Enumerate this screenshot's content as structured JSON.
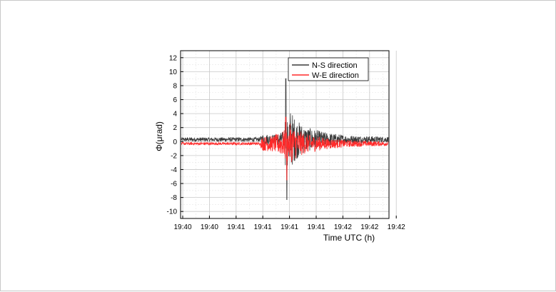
{
  "chart_data": {
    "type": "line",
    "xlabel": "Time UTC (h)",
    "ylabel": "Φ(μrad)",
    "x_tick_labels": [
      "19:40",
      "19:40",
      "19:41",
      "19:41",
      "19:41",
      "19:41",
      "19:42",
      "19:42",
      "19:42"
    ],
    "y_tick_labels": [
      "12",
      "10",
      "8",
      "6",
      "4",
      "2",
      "0",
      "-2",
      "-4",
      "-6",
      "-8",
      "-10"
    ],
    "ylim": [
      -11,
      13
    ],
    "y_ticks": [
      12,
      10,
      8,
      6,
      4,
      2,
      0,
      -2,
      -4,
      -6,
      -8,
      -10
    ],
    "grid": true,
    "legend_position": "top-right",
    "series": [
      {
        "name": "N-S direction",
        "color": "#3a3a3a",
        "baseline": 0.3,
        "profile": [
          [
            0.0,
            0.3
          ],
          [
            0.38,
            0.3
          ],
          [
            0.39,
            0.8
          ],
          [
            0.45,
            0.7
          ],
          [
            0.5,
            1.2
          ],
          [
            0.505,
            9.0
          ],
          [
            0.51,
            -8.3
          ],
          [
            0.52,
            4.8
          ],
          [
            0.55,
            3.0
          ],
          [
            0.6,
            1.8
          ],
          [
            0.7,
            1.0
          ],
          [
            0.8,
            0.6
          ],
          [
            1.0,
            0.4
          ]
        ]
      },
      {
        "name": "W-E direction",
        "color": "#ff2a2a",
        "baseline": -0.3,
        "profile": [
          [
            0.0,
            0.2
          ],
          [
            0.38,
            0.2
          ],
          [
            0.39,
            1.0
          ],
          [
            0.45,
            1.2
          ],
          [
            0.5,
            2.0
          ],
          [
            0.505,
            3.5
          ],
          [
            0.51,
            -5.5
          ],
          [
            0.52,
            3.0
          ],
          [
            0.55,
            2.2
          ],
          [
            0.6,
            1.4
          ],
          [
            0.7,
            0.8
          ],
          [
            0.8,
            0.5
          ],
          [
            1.0,
            0.3
          ]
        ]
      }
    ]
  }
}
